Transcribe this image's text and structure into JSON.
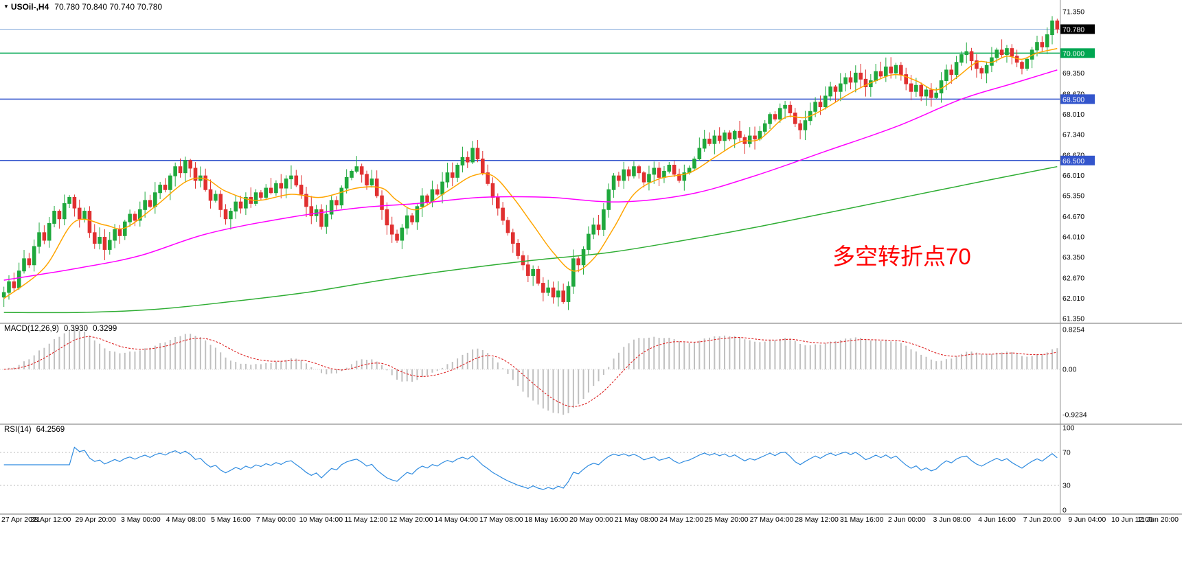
{
  "header": {
    "collapse_icon": "▼",
    "symbol_timeframe": "USOil-,H4",
    "ohlc": "70.780 70.840 70.740 70.780"
  },
  "annotation": {
    "text": "多空转折点70",
    "color": "#FF0000"
  },
  "current_price": {
    "value": 70.78,
    "label": "70.780",
    "line_color": "#7EA6D9",
    "box_color": "#000000"
  },
  "hlines": [
    {
      "value": 70.0,
      "label": "70.000",
      "color": "#00A651"
    },
    {
      "value": 68.5,
      "label": "68.500",
      "color": "#3355CC"
    },
    {
      "value": 66.5,
      "label": "66.500",
      "color": "#3355CC"
    }
  ],
  "price_axis": {
    "labels": [
      {
        "text": "71.350",
        "value": 71.35
      },
      {
        "text": "69.350",
        "value": 69.35
      },
      {
        "text": "68.670",
        "value": 68.67
      },
      {
        "text": "68.010",
        "value": 68.01
      },
      {
        "text": "67.340",
        "value": 67.34
      },
      {
        "text": "66.670",
        "value": 66.67
      },
      {
        "text": "66.010",
        "value": 66.01
      },
      {
        "text": "65.350",
        "value": 65.35
      },
      {
        "text": "64.670",
        "value": 64.67
      },
      {
        "text": "64.010",
        "value": 64.01
      },
      {
        "text": "63.350",
        "value": 63.35
      },
      {
        "text": "62.670",
        "value": 62.67
      },
      {
        "text": "62.010",
        "value": 62.01
      },
      {
        "text": "61.350",
        "value": 61.35
      }
    ]
  },
  "time_axis": {
    "labels": [
      "27 Apr 2021",
      "28 Apr 12:00",
      "29 Apr 20:00",
      "3 May 00:00",
      "4 May 08:00",
      "5 May 16:00",
      "7 May 00:00",
      "10 May 04:00",
      "11 May 12:00",
      "12 May 20:00",
      "14 May 04:00",
      "17 May 08:00",
      "18 May 16:00",
      "20 May 00:00",
      "21 May 08:00",
      "24 May 12:00",
      "25 May 20:00",
      "27 May 04:00",
      "28 May 12:00",
      "31 May 16:00",
      "2 Jun 00:00",
      "3 Jun 08:00",
      "4 Jun 16:00",
      "7 Jun 20:00",
      "9 Jun 04:00",
      "10 Jun 12:00",
      "11 Jun 20:00"
    ]
  },
  "panels": {
    "macd": {
      "title": "MACD(12,26,9)",
      "value_main": "0.3930",
      "value_signal": "0.3299",
      "axis_labels": [
        "0.8254",
        "0.00",
        "-0.9234"
      ],
      "range": [
        -0.9234,
        0.8254
      ],
      "histogram_color": "#C0C0C0",
      "signal_color": "#DD2222"
    },
    "rsi": {
      "title": "RSI(14)",
      "value": "64.2569",
      "axis_labels": [
        "100",
        "70",
        "30",
        "0"
      ],
      "levels": [
        70,
        30
      ],
      "line_color": "#2E8BE0"
    }
  },
  "chart_data": {
    "type": "candlestick",
    "title": "USOil- H4",
    "x_range": [
      "27 Apr 2021",
      "11 Jun 2021 20:00"
    ],
    "bar_interval": "H4",
    "ylim": [
      61.35,
      71.35
    ],
    "quote": {
      "open": 70.78,
      "high": 70.84,
      "low": 70.74,
      "close": 70.78
    },
    "up_color": "#1FA83D",
    "down_color": "#E03030",
    "first_open": 62.05,
    "closes": [
      62.2,
      62.55,
      62.35,
      62.9,
      63.3,
      63.1,
      63.7,
      64.15,
      63.9,
      64.45,
      64.85,
      64.6,
      65.1,
      65.3,
      64.95,
      64.6,
      64.85,
      64.15,
      63.8,
      64.0,
      63.6,
      63.9,
      64.25,
      64.05,
      64.5,
      64.75,
      64.55,
      64.9,
      65.2,
      65.0,
      65.45,
      65.7,
      65.55,
      66.0,
      66.3,
      66.1,
      66.5,
      66.25,
      65.85,
      66.0,
      65.55,
      65.2,
      65.4,
      64.9,
      64.6,
      64.85,
      65.15,
      64.95,
      65.3,
      65.1,
      65.45,
      65.3,
      65.6,
      65.45,
      65.75,
      65.6,
      65.9,
      66.0,
      65.7,
      65.4,
      65.0,
      64.7,
      64.9,
      64.35,
      64.75,
      65.2,
      65.05,
      65.6,
      65.95,
      66.15,
      66.3,
      66.05,
      65.7,
      65.9,
      65.35,
      64.9,
      64.4,
      64.1,
      63.9,
      64.3,
      64.7,
      64.5,
      65.0,
      65.35,
      65.15,
      65.55,
      65.4,
      65.8,
      66.1,
      65.95,
      66.35,
      66.6,
      66.45,
      66.9,
      66.55,
      66.1,
      65.75,
      65.3,
      64.95,
      64.55,
      64.15,
      63.8,
      63.4,
      63.1,
      62.75,
      62.95,
      62.5,
      62.2,
      62.35,
      62.05,
      62.25,
      61.9,
      62.4,
      63.3,
      63.1,
      63.6,
      64.1,
      64.4,
      64.25,
      64.9,
      65.55,
      66.0,
      65.85,
      66.2,
      66.0,
      66.3,
      66.1,
      65.8,
      66.05,
      66.25,
      65.95,
      66.15,
      66.35,
      66.05,
      65.85,
      66.1,
      66.25,
      66.55,
      66.9,
      67.2,
      67.05,
      67.3,
      67.15,
      67.4,
      67.2,
      67.45,
      67.25,
      67.05,
      67.3,
      67.2,
      67.45,
      67.7,
      68.0,
      67.85,
      68.2,
      68.3,
      68.05,
      67.7,
      67.5,
      67.8,
      68.1,
      68.4,
      68.25,
      68.6,
      68.9,
      68.75,
      69.0,
      69.2,
      69.05,
      69.35,
      69.15,
      68.9,
      69.1,
      69.4,
      69.25,
      69.55,
      69.35,
      69.6,
      69.3,
      69.0,
      68.75,
      68.95,
      68.6,
      68.8,
      68.55,
      68.7,
      69.1,
      69.45,
      69.3,
      69.7,
      69.95,
      70.05,
      69.75,
      69.5,
      69.35,
      69.6,
      69.85,
      70.1,
      69.95,
      70.15,
      69.9,
      69.7,
      69.5,
      69.8,
      70.1,
      70.35,
      70.2,
      70.6,
      71.05,
      70.78
    ],
    "ma_lines": [
      {
        "name": "fast",
        "color": "#FFA500",
        "points": [
          [
            0,
            62.0
          ],
          [
            8,
            63.0
          ],
          [
            14,
            64.5
          ],
          [
            20,
            64.4
          ],
          [
            24,
            64.3
          ],
          [
            30,
            65.0
          ],
          [
            36,
            65.8
          ],
          [
            40,
            65.9
          ],
          [
            44,
            65.5
          ],
          [
            50,
            65.2
          ],
          [
            57,
            65.4
          ],
          [
            63,
            65.3
          ],
          [
            70,
            65.6
          ],
          [
            75,
            65.6
          ],
          [
            78,
            65.2
          ],
          [
            82,
            64.9
          ],
          [
            88,
            65.5
          ],
          [
            93,
            66.0
          ],
          [
            97,
            66.0
          ],
          [
            101,
            65.3
          ],
          [
            105,
            64.4
          ],
          [
            109,
            63.5
          ],
          [
            113,
            62.9
          ],
          [
            117,
            63.3
          ],
          [
            121,
            64.3
          ],
          [
            125,
            65.4
          ],
          [
            130,
            65.9
          ],
          [
            136,
            66.1
          ],
          [
            141,
            66.6
          ],
          [
            146,
            67.1
          ],
          [
            150,
            67.2
          ],
          [
            155,
            67.9
          ],
          [
            159,
            67.9
          ],
          [
            163,
            68.2
          ],
          [
            168,
            68.7
          ],
          [
            173,
            69.1
          ],
          [
            177,
            69.3
          ],
          [
            181,
            69.1
          ],
          [
            185,
            68.8
          ],
          [
            189,
            69.2
          ],
          [
            193,
            69.7
          ],
          [
            196,
            69.7
          ],
          [
            199,
            69.9
          ],
          [
            202,
            69.8
          ],
          [
            205,
            70.0
          ],
          [
            209,
            70.15
          ]
        ]
      },
      {
        "name": "mid",
        "color": "#FF00FF",
        "points": [
          [
            0,
            62.6
          ],
          [
            15,
            63.0
          ],
          [
            27,
            63.4
          ],
          [
            40,
            64.1
          ],
          [
            55,
            64.6
          ],
          [
            70,
            64.95
          ],
          [
            82,
            65.1
          ],
          [
            95,
            65.3
          ],
          [
            108,
            65.3
          ],
          [
            122,
            65.15
          ],
          [
            136,
            65.4
          ],
          [
            149,
            66.0
          ],
          [
            163,
            66.8
          ],
          [
            177,
            67.6
          ],
          [
            190,
            68.5
          ],
          [
            200,
            69.0
          ],
          [
            209,
            69.45
          ]
        ]
      },
      {
        "name": "slow",
        "color": "#2EAD33",
        "points": [
          [
            0,
            61.55
          ],
          [
            15,
            61.55
          ],
          [
            30,
            61.65
          ],
          [
            45,
            61.9
          ],
          [
            60,
            62.2
          ],
          [
            75,
            62.6
          ],
          [
            90,
            62.95
          ],
          [
            105,
            63.25
          ],
          [
            120,
            63.5
          ],
          [
            135,
            63.9
          ],
          [
            150,
            64.35
          ],
          [
            165,
            64.85
          ],
          [
            180,
            65.35
          ],
          [
            195,
            65.85
          ],
          [
            209,
            66.3
          ]
        ]
      }
    ]
  }
}
